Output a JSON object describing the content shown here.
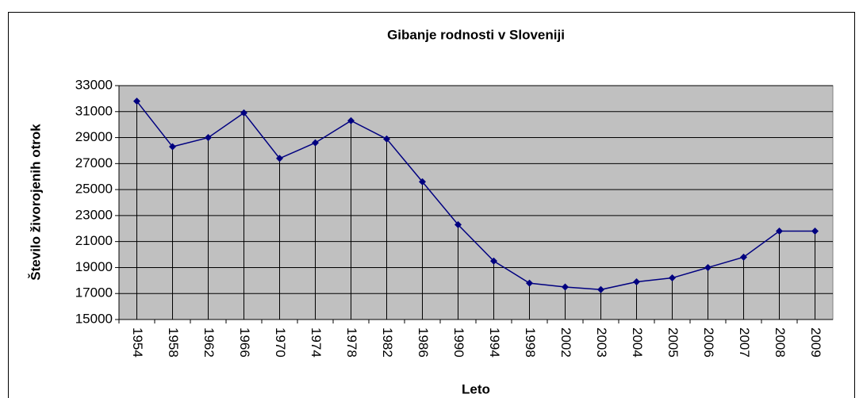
{
  "chart_data": {
    "type": "line",
    "title": "Gibanje rodnosti v Sloveniji",
    "x_label": "Leto",
    "y_label": "Število živorojenih otrok",
    "categories": [
      "1954",
      "1958",
      "1962",
      "1966",
      "1970",
      "1974",
      "1978",
      "1982",
      "1986",
      "1990",
      "1994",
      "1998",
      "2002",
      "2003",
      "2004",
      "2005",
      "2006",
      "2007",
      "2008",
      "2009"
    ],
    "series": [
      {
        "name": "Število živorojenih otrok",
        "color": "#000080",
        "values": [
          31800,
          28300,
          29000,
          30900,
          27400,
          28600,
          30300,
          28900,
          25600,
          22300,
          19500,
          17800,
          17500,
          17300,
          17900,
          18200,
          19000,
          19800,
          21800,
          21800
        ]
      }
    ],
    "ylim": [
      15000,
      33000
    ],
    "yticks": [
      15000,
      17000,
      19000,
      21000,
      23000,
      25000,
      27000,
      29000,
      31000,
      33000
    ],
    "grid": true,
    "drop_lines": true,
    "plot_background": "#c0c0c0"
  }
}
